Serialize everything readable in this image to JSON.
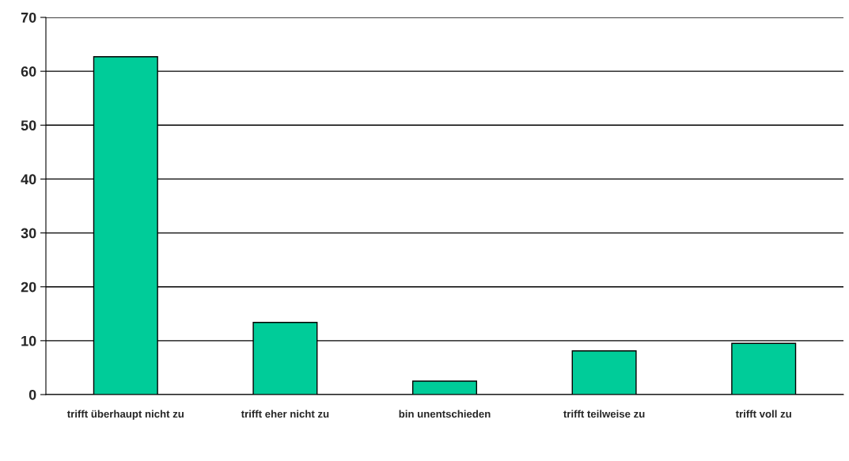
{
  "chart_data": {
    "type": "bar",
    "categories": [
      "trifft überhaupt nicht zu",
      "trifft eher nicht zu",
      "bin unentschieden",
      "trifft teilweise zu",
      "trifft voll zu"
    ],
    "values": [
      62.7,
      13.4,
      2.5,
      8.1,
      9.5
    ],
    "color": "#00cc99",
    "ylim": [
      0,
      70
    ],
    "yticks": [
      0,
      10,
      20,
      30,
      40,
      50,
      60,
      70
    ],
    "grid": "y"
  }
}
